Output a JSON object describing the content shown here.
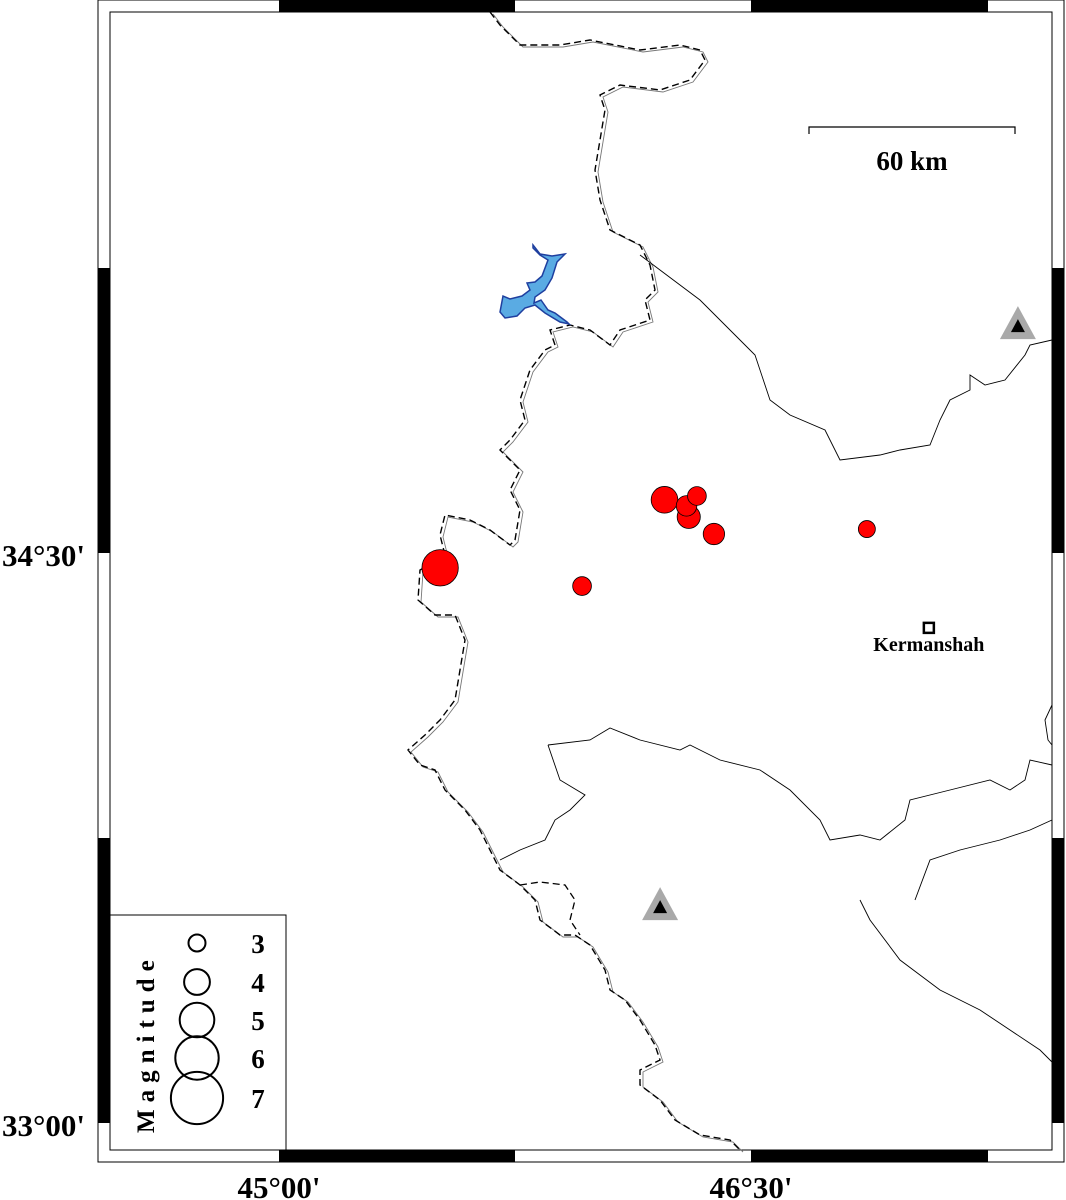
{
  "map": {
    "extent": {
      "lon": [
        44.463,
        47.456
      ],
      "lat": [
        32.929,
        35.924
      ]
    },
    "longitude_ticks": [
      {
        "value": 45.0,
        "label": "45°00'"
      },
      {
        "value": 46.5,
        "label": "46°30'"
      }
    ],
    "latitude_ticks": [
      {
        "value": 34.5,
        "label": "34°30'"
      },
      {
        "value": 33.0,
        "label": "33°00'"
      }
    ],
    "colors": {
      "event_fill": "#ff0000",
      "lake_fill": "#5aabe3",
      "lake_outline": "#1f3f9f",
      "station_outer": "#a9a9a9",
      "station_inner": "#000000"
    },
    "scale_bar": {
      "label": "60 km",
      "length_km": 60
    },
    "cities": [
      {
        "name": "Kermanshah",
        "lon": 47.065,
        "lat": 34.303,
        "icon": "square-marker"
      }
    ],
    "stations": [
      {
        "lon": 47.348,
        "lat": 35.097,
        "icon": "triangle"
      },
      {
        "lon": 46.211,
        "lat": 33.568,
        "icon": "triangle"
      }
    ],
    "events": [
      {
        "lon": 45.512,
        "lat": 34.461,
        "mag": 5.2
      },
      {
        "lon": 46.225,
        "lat": 34.64,
        "mag": 4.1
      },
      {
        "lon": 46.302,
        "lat": 34.595,
        "mag": 3.7
      },
      {
        "lon": 46.295,
        "lat": 34.624,
        "mag": 3.4
      },
      {
        "lon": 46.328,
        "lat": 34.65,
        "mag": 3.2
      },
      {
        "lon": 46.382,
        "lat": 34.55,
        "mag": 3.5
      },
      {
        "lon": 45.963,
        "lat": 34.413,
        "mag": 3.2
      },
      {
        "lon": 46.868,
        "lat": 34.563,
        "mag": 3.0
      }
    ],
    "legend": {
      "title": "Magnitude",
      "entries": [
        {
          "mag": 3,
          "label": "3"
        },
        {
          "mag": 4,
          "label": "4"
        },
        {
          "mag": 5,
          "label": "5"
        },
        {
          "mag": 6,
          "label": "6"
        },
        {
          "mag": 7,
          "label": "7"
        }
      ]
    }
  }
}
